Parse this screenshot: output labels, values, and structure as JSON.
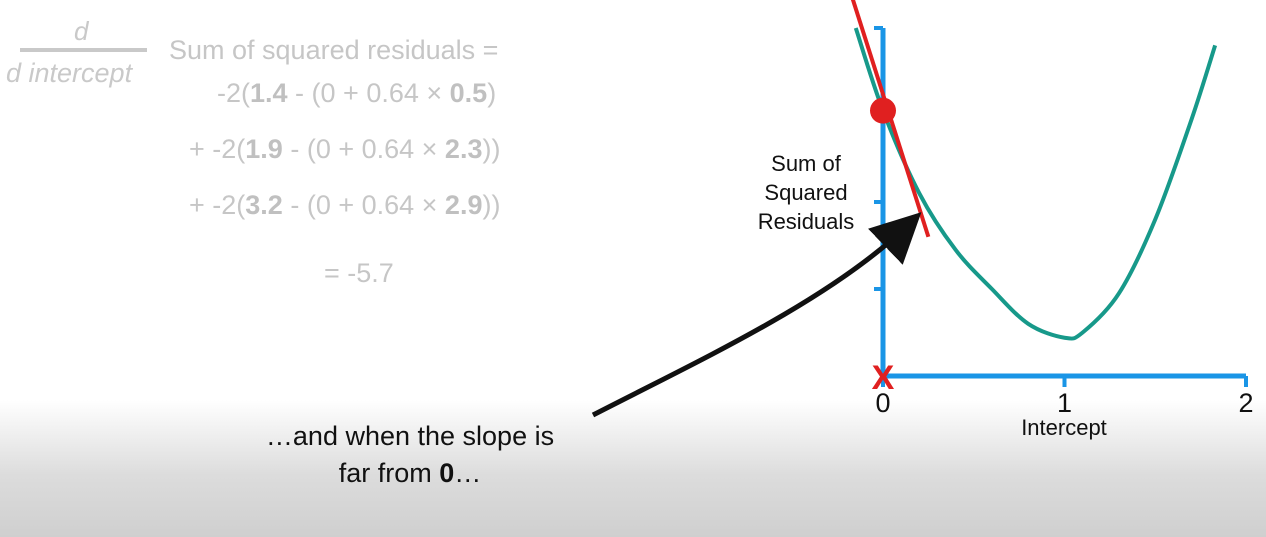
{
  "equation": {
    "fraction_numerator": "d",
    "fraction_denominator": "d intercept",
    "title": "Sum of squared residuals =",
    "terms": [
      {
        "prefix": "-2(",
        "observed": "1.4",
        "middle": " - (0 + 0.64 × ",
        "x": "0.5",
        "suffix": ")"
      },
      {
        "prefix": "+ -2(",
        "observed": "1.9",
        "middle": " - (0 + 0.64 × ",
        "x": "2.3",
        "suffix": "))"
      },
      {
        "prefix": "+ -2(",
        "observed": "3.2",
        "middle": " - (0 + 0.64 × ",
        "x": "2.9",
        "suffix": "))"
      }
    ],
    "result": "= -5.7"
  },
  "caption": {
    "line1": "…and when the slope is",
    "line2_prefix": "far from ",
    "line2_bold": "0",
    "line2_suffix": "…"
  },
  "chart_data": {
    "type": "line",
    "ylabel": [
      "Sum of",
      "Squared",
      "Residuals"
    ],
    "xlabel": "Intercept",
    "xticks": [
      "0",
      "1",
      "2"
    ],
    "xlim": [
      0,
      2
    ],
    "ylim": [
      0,
      4
    ],
    "yticks_count": 4,
    "series": [
      {
        "color": "#17998a",
        "x": [
          -0.15,
          0,
          0.2,
          0.4,
          0.6,
          0.8,
          1.0,
          1.1,
          1.3,
          1.5,
          1.7,
          1.83
        ],
        "y": [
          4.0,
          3.05,
          2.1,
          1.45,
          1.0,
          0.6,
          0.44,
          0.5,
          0.95,
          1.8,
          2.95,
          3.8
        ]
      }
    ],
    "tangent": {
      "color": "#e02020",
      "x": [
        -0.2,
        0.25
      ],
      "y": [
        4.55,
        1.6
      ]
    },
    "point": {
      "x": 0,
      "y": 3.05,
      "color": "#e02020"
    },
    "marker": {
      "x": 0,
      "symbol": "X",
      "color": "#e02020"
    },
    "axis_color": "#1a95e6",
    "arrow_color": "#111111"
  }
}
